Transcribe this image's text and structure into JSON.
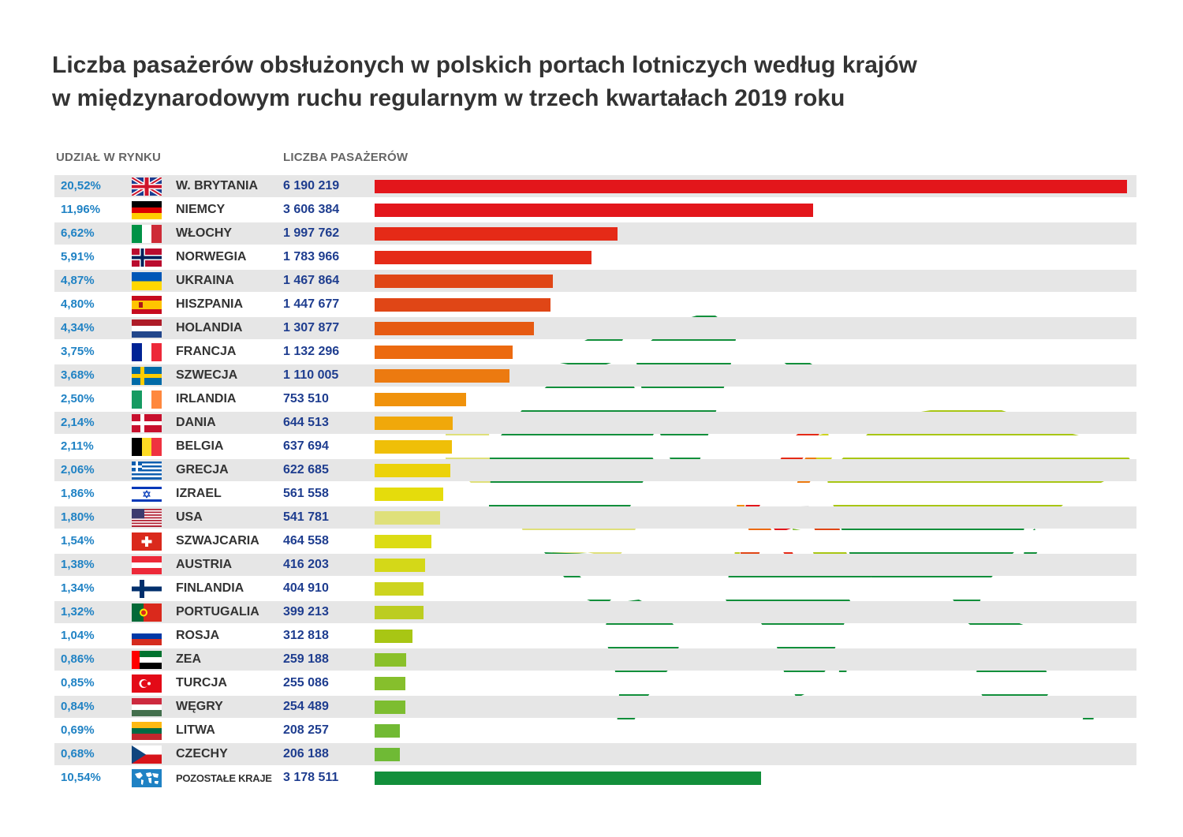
{
  "title": {
    "line1": "Liczba pasażerów obsłużonych w polskich portach lotniczych według krajów",
    "line2": "w międzynarodowym ruchu regularnym w trzech kwartałach 2019 roku"
  },
  "headers": {
    "share": "UDZIAŁ W RYNKU",
    "passengers": "LICZBA PASAŻERÓW"
  },
  "map_colors": {
    "ocean_land_default": "#128f3b",
    "usa": "#dfe07a",
    "russia": "#a8c614",
    "uk": "#e3161b",
    "germany": "#e3161b",
    "italy": "#e52a17",
    "norway": "#e52a17",
    "ukraine": "#e04616",
    "spain": "#e04616",
    "france": "#ec6a10",
    "sweden": "#ec7a10",
    "finland": "#cdd41f",
    "turkey": "#a8c614",
    "hungary": "#7dbd30",
    "czechia": "#6fba35",
    "poland": "#ffffff"
  },
  "chart_data": {
    "type": "bar",
    "orientation": "horizontal",
    "title": "Liczba pasażerów obsłużonych w polskich portach lotniczych według krajów w międzynarodowym ruchu regularnym w trzech kwartałach 2019 roku",
    "categories": [
      "W. BRYTANIA",
      "NIEMCY",
      "WŁOCHY",
      "NORWEGIA",
      "UKRAINA",
      "HISZPANIA",
      "HOLANDIA",
      "FRANCJA",
      "SZWECJA",
      "IRLANDIA",
      "DANIA",
      "BELGIA",
      "GRECJA",
      "IZRAEL",
      "USA",
      "SZWAJCARIA",
      "AUSTRIA",
      "FINLANDIA",
      "PORTUGALIA",
      "ROSJA",
      "ZEA",
      "TURCJA",
      "WĘGRY",
      "LITWA",
      "CZECHY",
      "POZOSTAŁE KRAJE"
    ],
    "values": [
      6190219,
      3606384,
      1997762,
      1783966,
      1467864,
      1447677,
      1307877,
      1132296,
      1110005,
      753510,
      644513,
      637694,
      622685,
      561558,
      541781,
      464558,
      416203,
      404910,
      399213,
      312818,
      259188,
      255086,
      254489,
      208257,
      206188,
      3178511
    ],
    "value_labels": [
      "6 190 219",
      "3 606 384",
      "1 997 762",
      "1 783 966",
      "1 467 864",
      "1 447 677",
      "1 307 877",
      "1 132 296",
      "1 110 005",
      "753 510",
      "644 513",
      "637 694",
      "622 685",
      "561 558",
      "541 781",
      "464 558",
      "416 203",
      "404 910",
      "399 213",
      "312 818",
      "259 188",
      "255 086",
      "254 489",
      "208 257",
      "206 188",
      "3 178 511"
    ],
    "shares": [
      "20,52%",
      "11,96%",
      "6,62%",
      "5,91%",
      "4,87%",
      "4,80%",
      "4,34%",
      "3,75%",
      "3,68%",
      "2,50%",
      "2,14%",
      "2,11%",
      "2,06%",
      "1,86%",
      "1,80%",
      "1,54%",
      "1,38%",
      "1,34%",
      "1,32%",
      "1,04%",
      "0,86%",
      "0,85%",
      "0,84%",
      "0,69%",
      "0,68%",
      "10,54%"
    ],
    "flags": [
      "flag-uk-icon",
      "flag-germany-icon",
      "flag-italy-icon",
      "flag-norway-icon",
      "flag-ukraine-icon",
      "flag-spain-icon",
      "flag-netherlands-icon",
      "flag-france-icon",
      "flag-sweden-icon",
      "flag-ireland-icon",
      "flag-denmark-icon",
      "flag-belgium-icon",
      "flag-greece-icon",
      "flag-israel-icon",
      "flag-usa-icon",
      "flag-switzerland-icon",
      "flag-austria-icon",
      "flag-finland-icon",
      "flag-portugal-icon",
      "flag-russia-icon",
      "flag-uae-icon",
      "flag-turkey-icon",
      "flag-hungary-icon",
      "flag-lithuania-icon",
      "flag-czechia-icon",
      "world-map-icon"
    ],
    "colors": [
      "#e3161b",
      "#e3161b",
      "#e52a17",
      "#e52a17",
      "#e04616",
      "#e04616",
      "#e65a12",
      "#ec6a10",
      "#ec7a10",
      "#f0920c",
      "#f0a80a",
      "#efbf08",
      "#ecd20a",
      "#e5dc0c",
      "#dfe07a",
      "#dcdc14",
      "#d4d818",
      "#cdd41f",
      "#bccd20",
      "#a8c614",
      "#8ac02a",
      "#86bf2c",
      "#7dbd30",
      "#72ba34",
      "#6fba35",
      "#128f3b"
    ],
    "xlim": [
      0,
      6190219
    ]
  }
}
